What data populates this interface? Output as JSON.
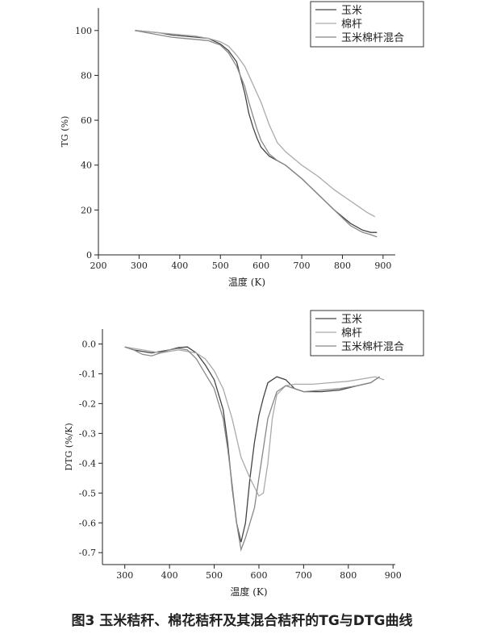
{
  "chart_data": [
    {
      "type": "line",
      "xlabel": "温度 (K)",
      "ylabel": "TG (%)",
      "xlim": [
        200,
        930
      ],
      "xticks": [
        200,
        300,
        400,
        500,
        600,
        700,
        800,
        900
      ],
      "ylim": [
        0,
        110
      ],
      "yticks": [
        0,
        20,
        40,
        60,
        80,
        100
      ],
      "legend": "upper right",
      "series": [
        {
          "name": "玉米",
          "color": "#444444",
          "x": [
            290,
            320,
            350,
            380,
            410,
            440,
            470,
            500,
            520,
            540,
            550,
            560,
            570,
            580,
            590,
            600,
            620,
            640,
            660,
            680,
            700,
            740,
            780,
            820,
            850,
            870,
            885
          ],
          "values": [
            100,
            99.5,
            99,
            98,
            97.5,
            97,
            96.5,
            94,
            91,
            86,
            79,
            72,
            63,
            57,
            52,
            48,
            44,
            42,
            40,
            37,
            34,
            27,
            20,
            14,
            11,
            10,
            10
          ]
        },
        {
          "name": "棉杆",
          "color": "#aaaaaa",
          "x": [
            290,
            320,
            350,
            380,
            410,
            440,
            470,
            500,
            520,
            540,
            560,
            580,
            600,
            620,
            640,
            660,
            680,
            700,
            740,
            780,
            820,
            860,
            880
          ],
          "values": [
            100,
            99.5,
            99,
            98.5,
            98,
            97.5,
            96.5,
            95,
            93,
            89,
            84,
            76,
            68,
            58,
            50,
            46,
            43,
            40,
            35,
            29,
            24,
            19,
            17
          ]
        },
        {
          "name": "玉米棉杆混合",
          "color": "#888888",
          "x": [
            290,
            320,
            350,
            380,
            410,
            440,
            470,
            500,
            520,
            540,
            560,
            570,
            580,
            590,
            600,
            620,
            640,
            660,
            680,
            700,
            740,
            780,
            820,
            850,
            870,
            885
          ],
          "values": [
            100,
            99,
            98,
            97,
            96.5,
            96,
            95.5,
            93.5,
            90,
            84,
            75,
            68,
            62,
            56,
            51,
            45,
            42,
            40,
            37,
            34,
            27,
            20,
            13,
            10,
            9,
            8
          ]
        }
      ]
    },
    {
      "type": "line",
      "xlabel": "温度 (K)",
      "ylabel": "DTG (%/K)",
      "xlim": [
        250,
        905
      ],
      "xticks": [
        300,
        400,
        500,
        600,
        700,
        800,
        900
      ],
      "ylim": [
        -0.74,
        0.05
      ],
      "yticks": [
        {
          "value": 0,
          "label": "0.0"
        },
        -0.1,
        -0.2,
        -0.3,
        -0.4,
        -0.5,
        -0.6,
        -0.7
      ],
      "legend": "upper right",
      "series": [
        {
          "name": "玉米",
          "color": "#444444",
          "x": [
            300,
            320,
            340,
            360,
            380,
            400,
            420,
            440,
            460,
            480,
            500,
            520,
            530,
            540,
            550,
            560,
            570,
            580,
            590,
            600,
            610,
            620,
            640,
            660,
            680,
            700,
            740,
            780,
            820,
            850,
            870
          ],
          "values": [
            -0.01,
            -0.02,
            -0.025,
            -0.03,
            -0.025,
            -0.02,
            -0.012,
            -0.01,
            -0.03,
            -0.07,
            -0.12,
            -0.22,
            -0.33,
            -0.48,
            -0.6,
            -0.665,
            -0.6,
            -0.45,
            -0.33,
            -0.24,
            -0.18,
            -0.13,
            -0.11,
            -0.12,
            -0.15,
            -0.16,
            -0.16,
            -0.155,
            -0.14,
            -0.13,
            -0.11
          ]
        },
        {
          "name": "棉杆",
          "color": "#aaaaaa",
          "x": [
            300,
            340,
            380,
            420,
            460,
            480,
            500,
            520,
            540,
            560,
            580,
            600,
            610,
            620,
            630,
            640,
            660,
            680,
            720,
            760,
            800,
            840,
            860,
            880
          ],
          "values": [
            -0.01,
            -0.02,
            -0.03,
            -0.02,
            -0.03,
            -0.05,
            -0.09,
            -0.15,
            -0.25,
            -0.38,
            -0.45,
            -0.51,
            -0.5,
            -0.4,
            -0.25,
            -0.17,
            -0.14,
            -0.135,
            -0.135,
            -0.13,
            -0.125,
            -0.115,
            -0.11,
            -0.12
          ]
        },
        {
          "name": "玉米棉杆混合",
          "color": "#888888",
          "x": [
            300,
            320,
            340,
            360,
            380,
            400,
            420,
            440,
            460,
            480,
            500,
            520,
            530,
            540,
            550,
            560,
            570,
            580,
            590,
            600,
            610,
            620,
            640,
            660,
            680,
            700,
            740,
            780,
            820,
            850,
            870
          ],
          "values": [
            -0.01,
            -0.02,
            -0.035,
            -0.04,
            -0.03,
            -0.02,
            -0.015,
            -0.02,
            -0.05,
            -0.1,
            -0.15,
            -0.25,
            -0.35,
            -0.47,
            -0.6,
            -0.69,
            -0.65,
            -0.6,
            -0.55,
            -0.45,
            -0.35,
            -0.25,
            -0.16,
            -0.14,
            -0.15,
            -0.16,
            -0.155,
            -0.15,
            -0.14,
            -0.13,
            -0.11
          ]
        }
      ]
    }
  ],
  "caption": "图3 玉米秸秆、棉花秸秆及其混合秸秆的TG与DTG曲线"
}
